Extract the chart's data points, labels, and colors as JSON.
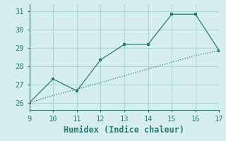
{
  "xlabel": "Humidex (Indice chaleur)",
  "line1_x": [
    9,
    10,
    11,
    12,
    13,
    14,
    15,
    16,
    17
  ],
  "line1_y": [
    26.0,
    26.4,
    26.74,
    27.1,
    27.48,
    27.85,
    28.22,
    28.59,
    28.85
  ],
  "line2_x": [
    9,
    10,
    11,
    12,
    13,
    14,
    15,
    16,
    17
  ],
  "line2_y": [
    26.0,
    27.3,
    26.65,
    28.35,
    29.2,
    29.2,
    30.85,
    30.85,
    28.85
  ],
  "color": "#2a7a7a",
  "bg_color": "#d6efee",
  "grid_color": "#a8d8d4",
  "xlim": [
    9,
    17
  ],
  "ylim": [
    25.6,
    31.4
  ],
  "xticks": [
    9,
    10,
    11,
    12,
    13,
    14,
    15,
    16,
    17
  ],
  "yticks": [
    26,
    27,
    28,
    29,
    30,
    31
  ],
  "xlabel_fontsize": 8.5,
  "tick_fontsize": 7.5
}
